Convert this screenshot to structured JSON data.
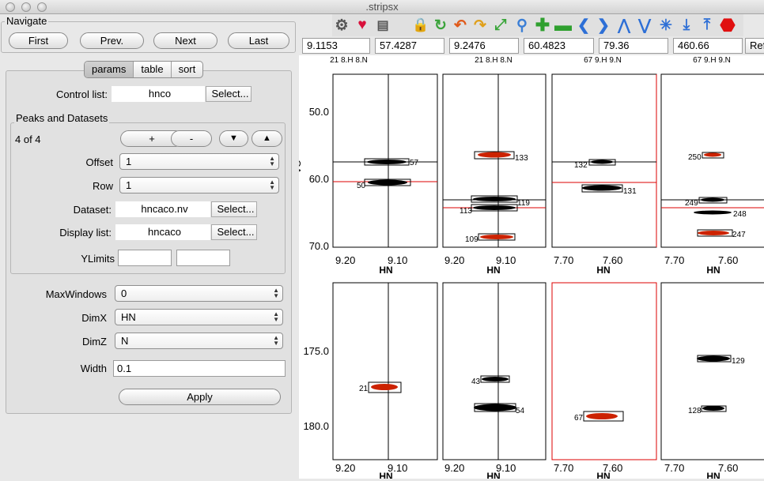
{
  "window": {
    "title": ".stripsx"
  },
  "navigate": {
    "title": "Navigate",
    "buttons": [
      "First",
      "Prev.",
      "Next",
      "Last"
    ]
  },
  "tabs": {
    "items": [
      "params",
      "table",
      "sort"
    ],
    "active": 0
  },
  "control": {
    "label": "Control list:",
    "value": "hnco",
    "select_label": "Select..."
  },
  "peaks": {
    "title": "Peaks and Datasets",
    "count": "4  of  4",
    "plus": "+",
    "minus": "-",
    "offset": {
      "label": "Offset",
      "value": "1"
    },
    "row": {
      "label": "Row",
      "value": "1"
    },
    "dataset": {
      "label": "Dataset:",
      "value": "hncaco.nv",
      "select_label": "Select..."
    },
    "display": {
      "label": "Display list:",
      "value": "hncaco",
      "select_label": "Select..."
    },
    "ylimits": {
      "label": "YLimits",
      "min": "",
      "max": ""
    }
  },
  "maxwindows": {
    "label": "MaxWindows",
    "value": "0"
  },
  "dimx": {
    "label": "DimX",
    "value": "HN"
  },
  "dimz": {
    "label": "DimZ",
    "value": "N"
  },
  "width": {
    "label": "Width",
    "value": "0.1"
  },
  "apply": {
    "label": "Apply"
  },
  "toolbar": {
    "icons": [
      "gear-icon",
      "heart-star-icon",
      "print-icon",
      "lock-icon",
      "refresh-icon",
      "undo-icon",
      "redo-icon",
      "expand-icon",
      "zoom-icon",
      "add-icon",
      "remove-icon",
      "left-arrow-icon",
      "right-arrow-icon",
      "up-chevron-icon",
      "down-chevron-icon",
      "asterisk-icon",
      "align-down-icon",
      "align-up-icon",
      "stop-icon"
    ]
  },
  "coords": [
    "9.1153",
    "57.4287",
    "9.2476",
    "60.4823",
    "79.36",
    "460.66",
    "Ref"
  ],
  "strips": {
    "headers": [
      "21 8.H 8.N",
      "21 8.H 8.N",
      "67 9.H 9.N",
      "67 9.H 9.N"
    ],
    "axis_x_label": "HN",
    "axis_y_label": "CA",
    "top_y_ticks": [
      "50.0",
      "60.0",
      "70.0"
    ],
    "bottom_y_ticks": [
      "175.0",
      "180.0"
    ],
    "x_ticks": [
      [
        "9.20",
        "9.10"
      ],
      [
        "9.20",
        "9.10"
      ],
      [
        "7.70",
        "7.60"
      ],
      [
        "7.70",
        "7.60"
      ]
    ],
    "top_peaks": [
      [
        "57",
        "50"
      ],
      [
        "133",
        "119",
        "113",
        "109"
      ],
      [
        "132",
        "131"
      ],
      [
        "250",
        "249",
        "248",
        "247"
      ]
    ],
    "bottom_peaks": [
      [
        "21"
      ],
      [
        "43",
        "54"
      ],
      [
        "67"
      ],
      [
        "129",
        "128"
      ]
    ]
  },
  "colors": {
    "peak_red": "#cc2200",
    "peak_black": "#000000",
    "crosshair_red": "#dd0000"
  }
}
